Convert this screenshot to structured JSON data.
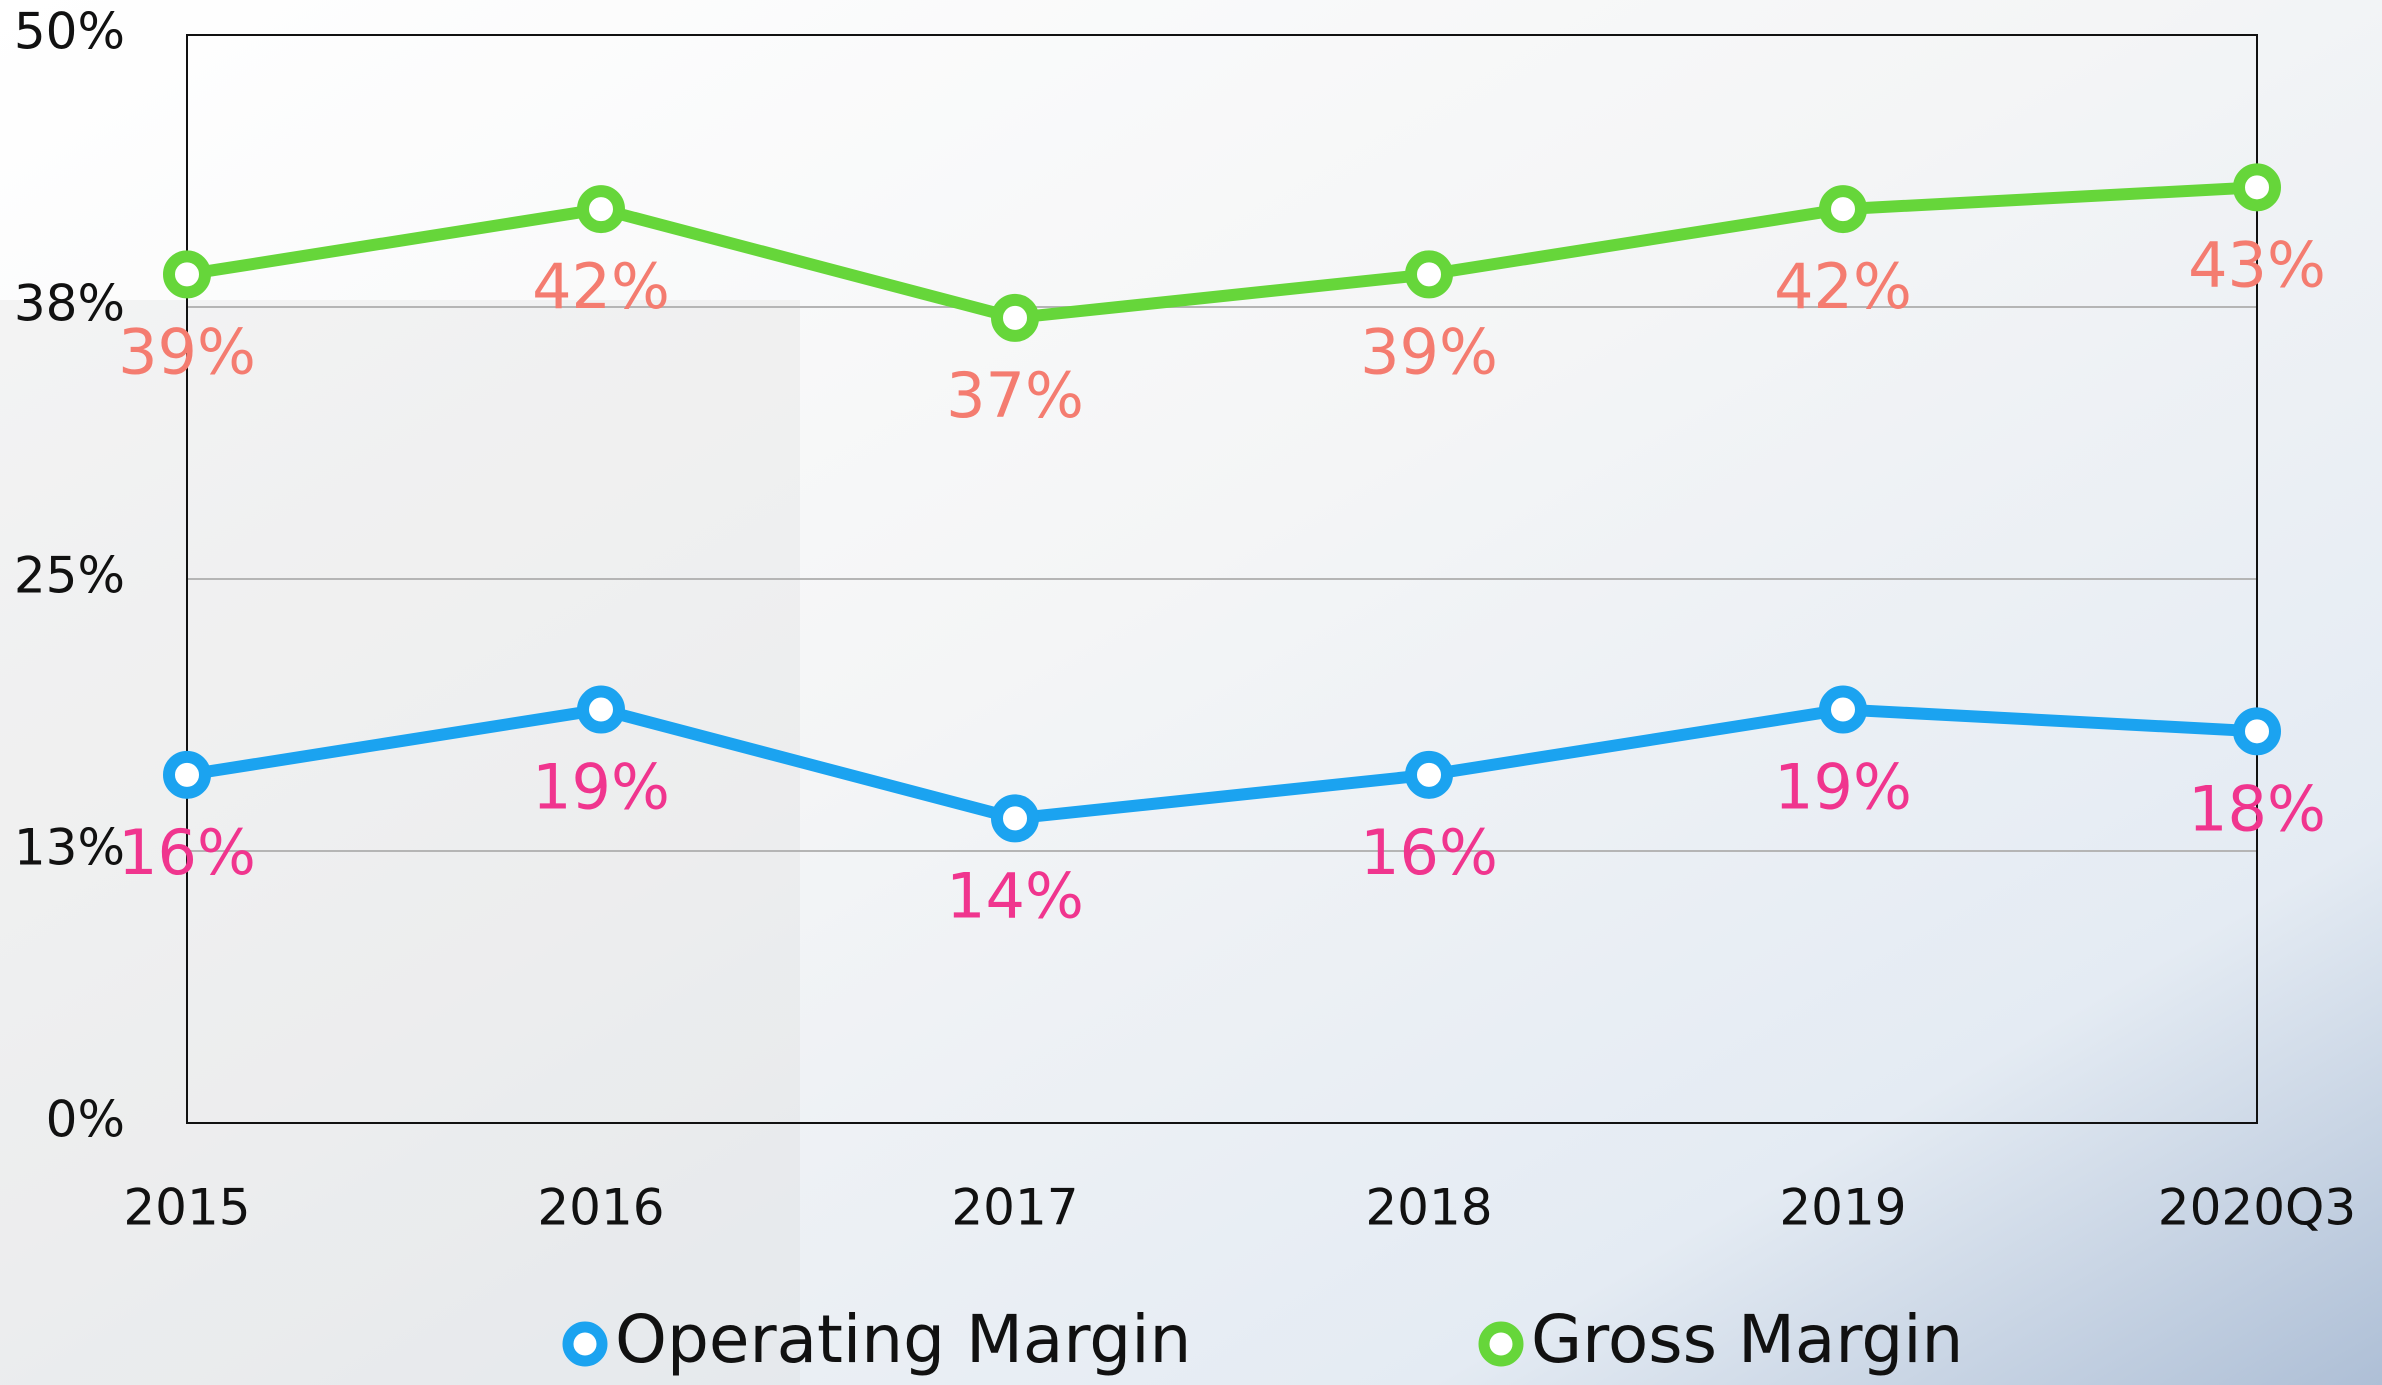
{
  "chart_data": {
    "type": "line",
    "categories": [
      "2015",
      "2016",
      "2017",
      "2018",
      "2019",
      "2020Q3"
    ],
    "series": [
      {
        "name": "Operating Margin",
        "color": "#1ba3f0",
        "label_color": "#f0358e",
        "values": [
          16,
          19,
          14,
          16,
          19,
          18
        ],
        "value_labels": [
          "16%",
          "19%",
          "14%",
          "16%",
          "19%",
          "18%"
        ]
      },
      {
        "name": "Gross Margin",
        "color": "#66d63a",
        "label_color": "#f47c70",
        "values": [
          39,
          42,
          37,
          39,
          42,
          43
        ],
        "value_labels": [
          "39%",
          "42%",
          "37%",
          "39%",
          "42%",
          "43%"
        ]
      }
    ],
    "ylim": [
      0,
      50
    ],
    "yticks": [
      {
        "value": 0,
        "label": "0%"
      },
      {
        "value": 12.5,
        "label": "13%"
      },
      {
        "value": 25,
        "label": "25%"
      },
      {
        "value": 37.5,
        "label": "38%"
      },
      {
        "value": 50,
        "label": "50%"
      }
    ],
    "grid": true,
    "legend": "bottom"
  }
}
